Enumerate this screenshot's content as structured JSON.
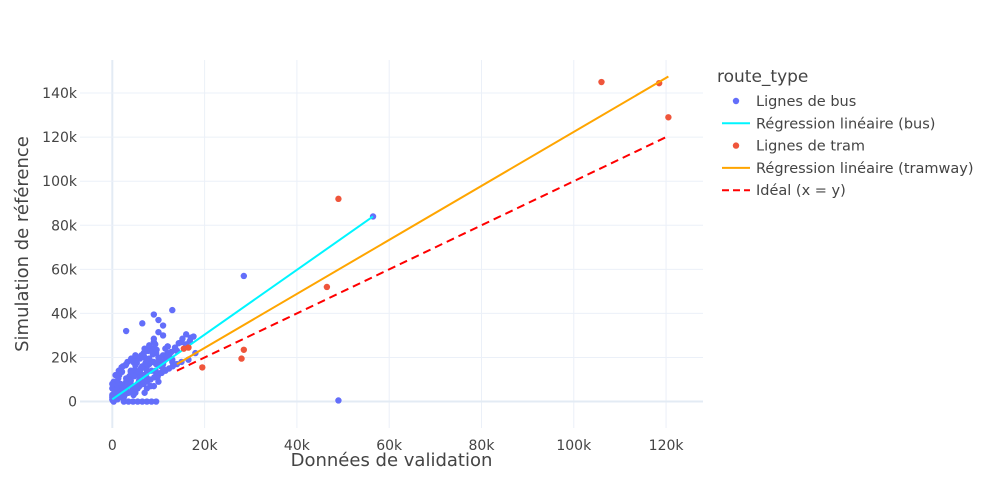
{
  "chart_data": {
    "type": "scatter",
    "xlabel": "Données de validation",
    "ylabel": "Simulation de référence",
    "xlim": [
      -7000,
      128000
    ],
    "ylim": [
      -12000,
      155000
    ],
    "x_ticks": [
      0,
      20000,
      40000,
      60000,
      80000,
      100000,
      120000
    ],
    "x_tick_labels": [
      "0",
      "20k",
      "40k",
      "60k",
      "80k",
      "100k",
      "120k"
    ],
    "y_ticks": [
      0,
      20000,
      40000,
      60000,
      80000,
      100000,
      120000,
      140000
    ],
    "y_tick_labels": [
      "0",
      "20k",
      "40k",
      "60k",
      "80k",
      "100k",
      "120k",
      "140k"
    ],
    "grid": true,
    "legend_title": "route_type",
    "legend_position": "right",
    "series": [
      {
        "name": "Lignes de bus",
        "kind": "scatter",
        "color": "#636efa",
        "x": [
          0,
          200,
          400,
          600,
          900,
          1200,
          1500,
          1800,
          2200,
          2600,
          3000,
          3400,
          3800,
          4200,
          4600,
          5000,
          5500,
          6000,
          6500,
          7000,
          7500,
          8000,
          8500,
          9000,
          9500,
          10000,
          11000,
          12000,
          13000,
          0,
          300,
          700,
          1000,
          1400,
          1800,
          2300,
          2800,
          3300,
          3800,
          4400,
          5000,
          5600,
          6200,
          6800,
          7400,
          8000,
          8700,
          9400,
          10200,
          11000,
          12000,
          0,
          500,
          900,
          1300,
          1700,
          2100,
          2500,
          2900,
          3300,
          3700,
          4100,
          4500,
          4900,
          5300,
          5800,
          6300,
          6800,
          7300,
          7800,
          8300,
          8800,
          9300,
          9800,
          10500,
          11500,
          12500,
          200,
          600,
          1000,
          1500,
          2000,
          2500,
          3000,
          3500,
          4000,
          4500,
          5000,
          5500,
          6000,
          6500,
          7000,
          7500,
          8000,
          8500,
          9000,
          9500,
          10000,
          10500,
          11000,
          11500,
          12000,
          13000,
          14000,
          15000,
          16000,
          17000,
          18000,
          100,
          800,
          1600,
          2400,
          3200,
          4000,
          4800,
          5600,
          6400,
          7200,
          8000,
          8800,
          9600,
          10400,
          11200,
          12000,
          12800,
          13600,
          14400,
          15200,
          16000,
          16800,
          17600,
          300,
          1100,
          1900,
          2700,
          3500,
          4300,
          5100,
          5900,
          6700,
          7500,
          8300,
          9100,
          9900,
          10700,
          11500,
          12300,
          13100,
          14000,
          15000,
          16500,
          2000,
          3000,
          4000,
          5000,
          6000,
          7000,
          8000,
          9000,
          10000,
          11000,
          2500,
          3500,
          4500,
          5500,
          6500,
          7500,
          8500,
          9500,
          0,
          1000,
          3000,
          5000,
          7000,
          9000,
          11000,
          0,
          2000,
          4000,
          6000,
          7500,
          9500,
          12000,
          14000,
          16000,
          3000,
          6500,
          9000,
          13000,
          10000,
          28500,
          56500,
          49000
        ],
        "y": [
          1000,
          2500,
          500,
          4000,
          1500,
          6000,
          3000,
          8000,
          2000,
          5000,
          9000,
          4000,
          11000,
          7000,
          3000,
          12000,
          6000,
          14000,
          9000,
          4000,
          16000,
          10000,
          18000,
          7000,
          13000,
          20000,
          15000,
          22000,
          18000,
          6000,
          9000,
          12000,
          3000,
          14000,
          7000,
          16000,
          5000,
          18000,
          10000,
          13000,
          20000,
          8000,
          15000,
          22000,
          11000,
          17000,
          24000,
          14000,
          19000,
          21000,
          25000,
          3000,
          4500,
          7500,
          10500,
          2500,
          13500,
          5500,
          16500,
          8500,
          11500,
          19500,
          6500,
          14500,
          17500,
          9500,
          21000,
          12000,
          15000,
          23000,
          7000,
          18000,
          26000,
          11000,
          16000,
          24000,
          20000,
          1500,
          5000,
          8500,
          12000,
          15500,
          2000,
          6000,
          10000,
          14000,
          18000,
          4000,
          8000,
          12000,
          16000,
          20000,
          6000,
          10000,
          14000,
          18000,
          22000,
          9000,
          13000,
          17000,
          21000,
          25000,
          19000,
          23000,
          27000,
          25000,
          29000,
          22000,
          500,
          2000,
          3500,
          5500,
          7500,
          9500,
          11500,
          13500,
          15500,
          17500,
          19500,
          21500,
          23500,
          16500,
          18500,
          20500,
          22500,
          24500,
          26500,
          28500,
          30500,
          27500,
          29500,
          0,
          1000,
          2000,
          3000,
          4000,
          5000,
          6000,
          7000,
          8000,
          9000,
          10000,
          11000,
          12000,
          13000,
          14000,
          15000,
          16000,
          17000,
          18000,
          19000,
          7500,
          10500,
          13500,
          16500,
          19500,
          22500,
          25500,
          28500,
          31500,
          34500,
          0,
          0,
          0,
          0,
          0,
          0,
          0,
          0,
          8000,
          12000,
          17000,
          21000,
          24000,
          27000,
          30000,
          2000,
          5000,
          8000,
          11000,
          14000,
          17000,
          20000,
          23000,
          26000,
          32000,
          35500,
          39500,
          41500,
          37000,
          57000,
          84000,
          500
        ]
      },
      {
        "name": "Régression linéaire (bus)",
        "kind": "line",
        "color": "#00f5ff",
        "dash": "solid",
        "x": [
          0,
          56500
        ],
        "y": [
          1000,
          84000
        ]
      },
      {
        "name": "Lignes de tram",
        "kind": "scatter",
        "color": "#ef553b",
        "x": [
          15500,
          16500,
          19500,
          28000,
          28500,
          46500,
          49000,
          106000,
          118500,
          120500
        ],
        "y": [
          24000,
          24500,
          15500,
          19500,
          23500,
          52000,
          92000,
          145000,
          144500,
          129000
        ]
      },
      {
        "name": "Régression linéaire (tramway)",
        "kind": "line",
        "color": "#ffa500",
        "dash": "solid",
        "x": [
          14000,
          120500
        ],
        "y": [
          17000,
          147500
        ]
      },
      {
        "name": "Idéal (x = y)",
        "kind": "line",
        "color": "#ff0000",
        "dash": "dashed",
        "x": [
          14000,
          120000
        ],
        "y": [
          14000,
          120000
        ]
      }
    ]
  }
}
